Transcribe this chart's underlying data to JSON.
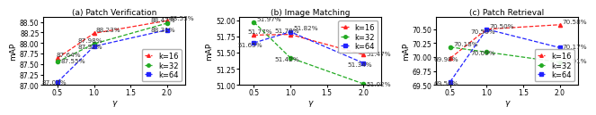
{
  "gamma": [
    0.5,
    1.0,
    2.0
  ],
  "patch_verification": {
    "k16": [
      87.64,
      88.23,
      88.53
    ],
    "k32": [
      87.55,
      87.98,
      88.47
    ],
    "k64": [
      87.07,
      87.92,
      88.31
    ],
    "ylim": [
      87.0,
      88.62
    ],
    "yticks": [
      87.0,
      87.25,
      87.5,
      87.75,
      88.0,
      88.25,
      88.5
    ],
    "title": "(a) Patch Verification",
    "legend_loc": "lower right"
  },
  "image_matching": {
    "k16": [
      51.77,
      51.78,
      51.47
    ],
    "k32": [
      51.97,
      51.42,
      51.02
    ],
    "k64": [
      51.65,
      51.82,
      51.34
    ],
    "ylim": [
      51.0,
      52.05
    ],
    "yticks": [
      51.0,
      51.25,
      51.5,
      51.75,
      52.0
    ],
    "title": "(b) Image Matching",
    "legend_loc": "upper right"
  },
  "patch_retrieval": {
    "k16": [
      69.98,
      70.5,
      70.58
    ],
    "k32": [
      70.18,
      70.09,
      69.91
    ],
    "k64": [
      69.56,
      70.5,
      70.17
    ],
    "ylim": [
      69.5,
      70.72
    ],
    "yticks": [
      69.5,
      69.75,
      70.0,
      70.25,
      70.5
    ],
    "title": "(c) Patch Retrieval",
    "legend_loc": "lower right"
  },
  "colors": {
    "k16": "#ff2222",
    "k32": "#22aa22",
    "k64": "#2222ff"
  },
  "markers": {
    "k16": "^",
    "k32": "o",
    "k64": "s"
  },
  "ylabel": "mAP",
  "xlabel": "γ",
  "annotation_fontsize": 5.2,
  "label_fontsize": 6.5,
  "tick_fontsize": 5.5,
  "title_fontsize": 6.5,
  "legend_fontsize": 6.0
}
